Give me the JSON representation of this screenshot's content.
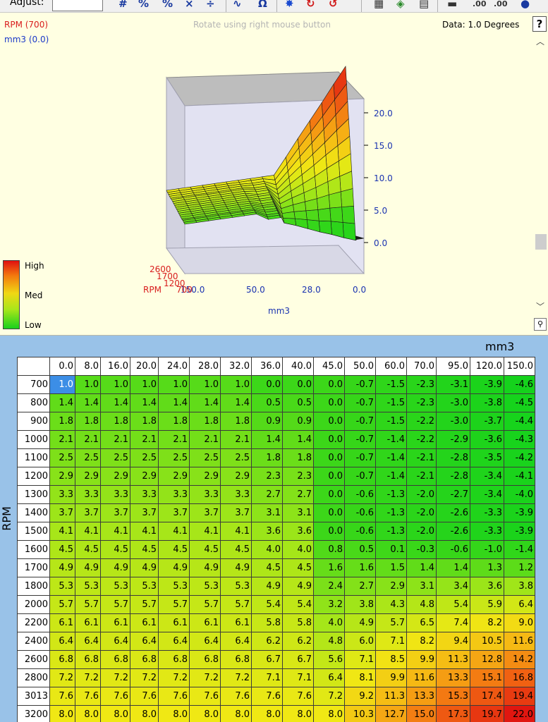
{
  "toolbar": {
    "adjust_label": "Adjust:",
    "adjust_value": "",
    "icons": [
      "hash-icon",
      "scale-icon",
      "percent-icon",
      "multiply-icon",
      "divide-icon",
      "smooth-icon",
      "omega-icon",
      "sun-icon",
      "cycle-icon",
      "redo-icon",
      "table-icon",
      "cube-icon",
      "grid-icon",
      "minus-icon",
      "decimal-up-icon",
      "decimal-down-icon",
      "info-icon"
    ]
  },
  "chart_panel": {
    "x_readout": "RPM (700)",
    "y_readout": "mm3 (0.0)",
    "rotate_hint": "Rotate using right mouse button",
    "data_readout": "Data: 1.0 Degrees",
    "help_label": "?",
    "zoom_icon": "magnifier-icon",
    "legend": {
      "high": "High",
      "med": "Med",
      "low": "Low"
    },
    "z_ticks": [
      "20.0",
      "15.0",
      "10.0",
      "5.0",
      "0.0"
    ],
    "x_ticks": [
      "150.0",
      "50.0",
      "28.0",
      "0.0"
    ],
    "rpm_ticks": [
      "2600",
      "1700",
      "1200",
      "700"
    ],
    "rpm_axis_label": "RPM",
    "mm3_axis_label": "mm3",
    "colors": {
      "high": "#e01010",
      "med": "#f0d814",
      "low": "#19d11c"
    }
  },
  "table": {
    "col_axis_label": "mm3",
    "row_axis_label": "RPM",
    "columns": [
      "0.0",
      "8.0",
      "16.0",
      "20.0",
      "24.0",
      "28.0",
      "32.0",
      "36.0",
      "40.0",
      "45.0",
      "50.0",
      "60.0",
      "70.0",
      "95.0",
      "120.0",
      "150.0"
    ],
    "rows": [
      {
        "rpm": "700",
        "values": [
          "1.0",
          "1.0",
          "1.0",
          "1.0",
          "1.0",
          "1.0",
          "1.0",
          "0.0",
          "0.0",
          "0.0",
          "-0.7",
          "-1.5",
          "-2.3",
          "-3.1",
          "-3.9",
          "-4.6"
        ]
      },
      {
        "rpm": "800",
        "values": [
          "1.4",
          "1.4",
          "1.4",
          "1.4",
          "1.4",
          "1.4",
          "1.4",
          "0.5",
          "0.5",
          "0.0",
          "-0.7",
          "-1.5",
          "-2.3",
          "-3.0",
          "-3.8",
          "-4.5"
        ]
      },
      {
        "rpm": "900",
        "values": [
          "1.8",
          "1.8",
          "1.8",
          "1.8",
          "1.8",
          "1.8",
          "1.8",
          "0.9",
          "0.9",
          "0.0",
          "-0.7",
          "-1.5",
          "-2.2",
          "-3.0",
          "-3.7",
          "-4.4"
        ]
      },
      {
        "rpm": "1000",
        "values": [
          "2.1",
          "2.1",
          "2.1",
          "2.1",
          "2.1",
          "2.1",
          "2.1",
          "1.4",
          "1.4",
          "0.0",
          "-0.7",
          "-1.4",
          "-2.2",
          "-2.9",
          "-3.6",
          "-4.3"
        ]
      },
      {
        "rpm": "1100",
        "values": [
          "2.5",
          "2.5",
          "2.5",
          "2.5",
          "2.5",
          "2.5",
          "2.5",
          "1.8",
          "1.8",
          "0.0",
          "-0.7",
          "-1.4",
          "-2.1",
          "-2.8",
          "-3.5",
          "-4.2"
        ]
      },
      {
        "rpm": "1200",
        "values": [
          "2.9",
          "2.9",
          "2.9",
          "2.9",
          "2.9",
          "2.9",
          "2.9",
          "2.3",
          "2.3",
          "0.0",
          "-0.7",
          "-1.4",
          "-2.1",
          "-2.8",
          "-3.4",
          "-4.1"
        ]
      },
      {
        "rpm": "1300",
        "values": [
          "3.3",
          "3.3",
          "3.3",
          "3.3",
          "3.3",
          "3.3",
          "3.3",
          "2.7",
          "2.7",
          "0.0",
          "-0.6",
          "-1.3",
          "-2.0",
          "-2.7",
          "-3.4",
          "-4.0"
        ]
      },
      {
        "rpm": "1400",
        "values": [
          "3.7",
          "3.7",
          "3.7",
          "3.7",
          "3.7",
          "3.7",
          "3.7",
          "3.1",
          "3.1",
          "0.0",
          "-0.6",
          "-1.3",
          "-2.0",
          "-2.6",
          "-3.3",
          "-3.9"
        ]
      },
      {
        "rpm": "1500",
        "values": [
          "4.1",
          "4.1",
          "4.1",
          "4.1",
          "4.1",
          "4.1",
          "4.1",
          "3.6",
          "3.6",
          "0.0",
          "-0.6",
          "-1.3",
          "-2.0",
          "-2.6",
          "-3.3",
          "-3.9"
        ]
      },
      {
        "rpm": "1600",
        "values": [
          "4.5",
          "4.5",
          "4.5",
          "4.5",
          "4.5",
          "4.5",
          "4.5",
          "4.0",
          "4.0",
          "0.8",
          "0.5",
          "0.1",
          "-0.3",
          "-0.6",
          "-1.0",
          "-1.4"
        ]
      },
      {
        "rpm": "1700",
        "values": [
          "4.9",
          "4.9",
          "4.9",
          "4.9",
          "4.9",
          "4.9",
          "4.9",
          "4.5",
          "4.5",
          "1.6",
          "1.6",
          "1.5",
          "1.4",
          "1.4",
          "1.3",
          "1.2"
        ]
      },
      {
        "rpm": "1800",
        "values": [
          "5.3",
          "5.3",
          "5.3",
          "5.3",
          "5.3",
          "5.3",
          "5.3",
          "4.9",
          "4.9",
          "2.4",
          "2.7",
          "2.9",
          "3.1",
          "3.4",
          "3.6",
          "3.8"
        ]
      },
      {
        "rpm": "2000",
        "values": [
          "5.7",
          "5.7",
          "5.7",
          "5.7",
          "5.7",
          "5.7",
          "5.7",
          "5.4",
          "5.4",
          "3.2",
          "3.8",
          "4.3",
          "4.8",
          "5.4",
          "5.9",
          "6.4"
        ]
      },
      {
        "rpm": "2200",
        "values": [
          "6.1",
          "6.1",
          "6.1",
          "6.1",
          "6.1",
          "6.1",
          "6.1",
          "5.8",
          "5.8",
          "4.0",
          "4.9",
          "5.7",
          "6.5",
          "7.4",
          "8.2",
          "9.0"
        ]
      },
      {
        "rpm": "2400",
        "values": [
          "6.4",
          "6.4",
          "6.4",
          "6.4",
          "6.4",
          "6.4",
          "6.4",
          "6.2",
          "6.2",
          "4.8",
          "6.0",
          "7.1",
          "8.2",
          "9.4",
          "10.5",
          "11.6"
        ]
      },
      {
        "rpm": "2600",
        "values": [
          "6.8",
          "6.8",
          "6.8",
          "6.8",
          "6.8",
          "6.8",
          "6.8",
          "6.7",
          "6.7",
          "5.6",
          "7.1",
          "8.5",
          "9.9",
          "11.3",
          "12.8",
          "14.2"
        ]
      },
      {
        "rpm": "2800",
        "values": [
          "7.2",
          "7.2",
          "7.2",
          "7.2",
          "7.2",
          "7.2",
          "7.2",
          "7.1",
          "7.1",
          "6.4",
          "8.1",
          "9.9",
          "11.6",
          "13.3",
          "15.1",
          "16.8"
        ]
      },
      {
        "rpm": "3013",
        "values": [
          "7.6",
          "7.6",
          "7.6",
          "7.6",
          "7.6",
          "7.6",
          "7.6",
          "7.6",
          "7.6",
          "7.2",
          "9.2",
          "11.3",
          "13.3",
          "15.3",
          "17.4",
          "19.4"
        ]
      },
      {
        "rpm": "3200",
        "values": [
          "8.0",
          "8.0",
          "8.0",
          "8.0",
          "8.0",
          "8.0",
          "8.0",
          "8.0",
          "8.0",
          "8.0",
          "10.3",
          "12.7",
          "15.0",
          "17.3",
          "19.7",
          "22.0"
        ]
      }
    ],
    "selected_cell": {
      "row": 0,
      "col": 0
    }
  }
}
